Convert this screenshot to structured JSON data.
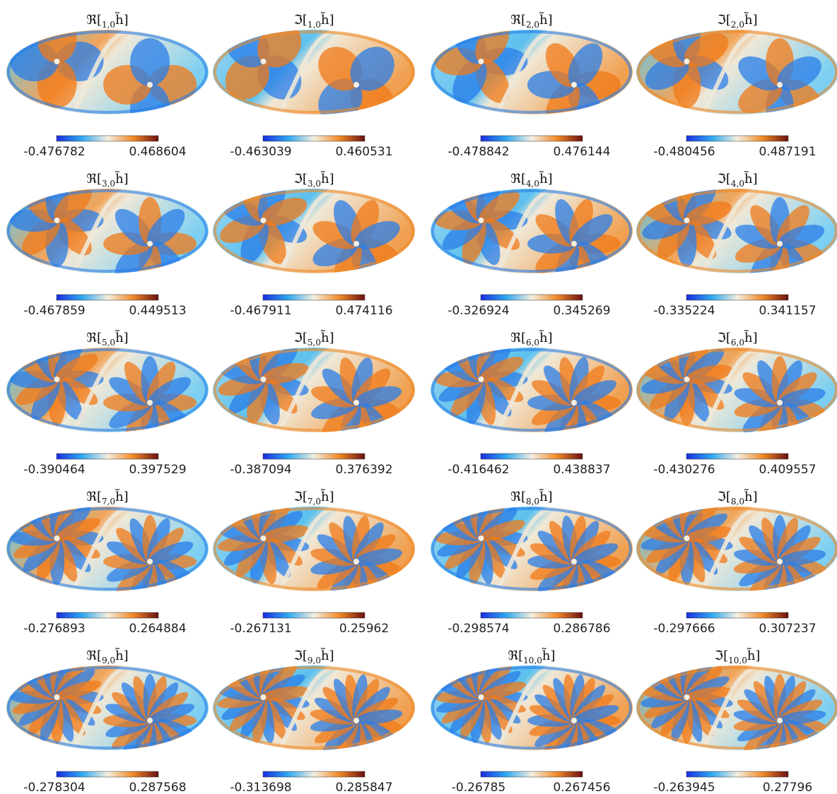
{
  "panels": [
    {
      "prefix": "ℜ[",
      "sub": "1,0",
      "suffix": "h̃]",
      "min": -0.476782,
      "max": 0.468604
    },
    {
      "prefix": "ℑ[",
      "sub": "1,0",
      "suffix": "h̃]",
      "min": -0.463039,
      "max": 0.460531
    },
    {
      "prefix": "ℜ[",
      "sub": "2,0",
      "suffix": "h̃]",
      "min": -0.478842,
      "max": 0.476144
    },
    {
      "prefix": "ℑ[",
      "sub": "2,0",
      "suffix": "h̃]",
      "min": -0.480456,
      "max": 0.487191
    },
    {
      "prefix": "ℜ[",
      "sub": "3,0",
      "suffix": "h̃]",
      "min": -0.467859,
      "max": 0.449513
    },
    {
      "prefix": "ℑ[",
      "sub": "3,0",
      "suffix": "h̃]",
      "min": -0.467911,
      "max": 0.474116
    },
    {
      "prefix": "ℜ[",
      "sub": "4,0",
      "suffix": "h̃]",
      "min": -0.326924,
      "max": 0.345269
    },
    {
      "prefix": "ℑ[",
      "sub": "4,0",
      "suffix": "h̃]",
      "min": -0.335224,
      "max": 0.341157
    },
    {
      "prefix": "ℜ[",
      "sub": "5,0",
      "suffix": "h̃]",
      "min": -0.390464,
      "max": 0.397529
    },
    {
      "prefix": "ℑ[",
      "sub": "5,0",
      "suffix": "h̃]",
      "min": -0.387094,
      "max": 0.376392
    },
    {
      "prefix": "ℜ[",
      "sub": "6,0",
      "suffix": "h̃]",
      "min": -0.416462,
      "max": 0.438837
    },
    {
      "prefix": "ℑ[",
      "sub": "6,0",
      "suffix": "h̃]",
      "min": -0.430276,
      "max": 0.409557
    },
    {
      "prefix": "ℜ[",
      "sub": "7,0",
      "suffix": "h̃]",
      "min": -0.276893,
      "max": 0.264884
    },
    {
      "prefix": "ℑ[",
      "sub": "7,0",
      "suffix": "h̃]",
      "min": -0.267131,
      "max": 0.25962
    },
    {
      "prefix": "ℜ[",
      "sub": "8,0",
      "suffix": "h̃]",
      "min": -0.298574,
      "max": 0.286786
    },
    {
      "prefix": "ℑ[",
      "sub": "8,0",
      "suffix": "h̃]",
      "min": -0.297666,
      "max": 0.307237
    },
    {
      "prefix": "ℜ[",
      "sub": "9,0",
      "suffix": "h̃]",
      "min": -0.278304,
      "max": 0.287568
    },
    {
      "prefix": "ℑ[",
      "sub": "9,0",
      "suffix": "h̃]",
      "min": -0.313698,
      "max": 0.285847
    },
    {
      "prefix": "ℜ[",
      "sub": "10,0",
      "suffix": "h̃]",
      "min": -0.26785,
      "max": 0.267456
    },
    {
      "prefix": "ℑ[",
      "sub": "10,0",
      "suffix": "h̃]",
      "min": -0.263945,
      "max": 0.27796
    }
  ]
}
